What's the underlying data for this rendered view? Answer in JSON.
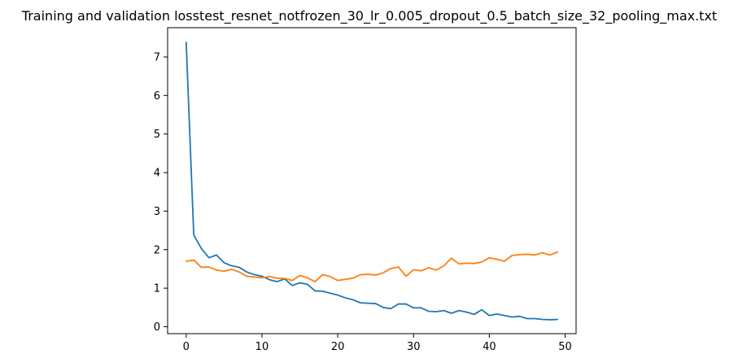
{
  "chart_data": {
    "type": "line",
    "title": "Training and validation losstest_resnet_notfrozen_30_lr_0.005_dropout_0.5_batch_size_32_pooling_max.txt",
    "xlabel": "",
    "ylabel": "",
    "xlim": [
      -2.45,
      51.45
    ],
    "ylim": [
      -0.18,
      7.76
    ],
    "x_ticks": [
      0,
      10,
      20,
      30,
      40,
      50
    ],
    "y_ticks": [
      0,
      1,
      2,
      3,
      4,
      5,
      6,
      7
    ],
    "grid": false,
    "legend": "none",
    "x": [
      0,
      1,
      2,
      3,
      4,
      5,
      6,
      7,
      8,
      9,
      10,
      11,
      12,
      13,
      14,
      15,
      16,
      17,
      18,
      19,
      20,
      21,
      22,
      23,
      24,
      25,
      26,
      27,
      28,
      29,
      30,
      31,
      32,
      33,
      34,
      35,
      36,
      37,
      38,
      39,
      40,
      41,
      42,
      43,
      44,
      45,
      46,
      47,
      48,
      49
    ],
    "series": [
      {
        "color": "#1f77b4",
        "values": [
          7.38,
          2.38,
          2.03,
          1.79,
          1.86,
          1.66,
          1.58,
          1.54,
          1.42,
          1.35,
          1.31,
          1.22,
          1.17,
          1.24,
          1.07,
          1.14,
          1.1,
          0.93,
          0.92,
          0.87,
          0.82,
          0.75,
          0.7,
          0.62,
          0.61,
          0.6,
          0.5,
          0.47,
          0.59,
          0.59,
          0.49,
          0.49,
          0.4,
          0.39,
          0.42,
          0.35,
          0.42,
          0.38,
          0.32,
          0.44,
          0.29,
          0.33,
          0.29,
          0.25,
          0.27,
          0.21,
          0.21,
          0.19,
          0.18,
          0.19
        ]
      },
      {
        "color": "#ff7f0e",
        "values": [
          1.7,
          1.73,
          1.54,
          1.55,
          1.47,
          1.44,
          1.49,
          1.42,
          1.31,
          1.29,
          1.27,
          1.3,
          1.26,
          1.25,
          1.2,
          1.33,
          1.27,
          1.17,
          1.35,
          1.3,
          1.2,
          1.23,
          1.26,
          1.35,
          1.36,
          1.34,
          1.4,
          1.51,
          1.55,
          1.31,
          1.48,
          1.45,
          1.53,
          1.47,
          1.58,
          1.78,
          1.63,
          1.65,
          1.64,
          1.68,
          1.79,
          1.75,
          1.7,
          1.85,
          1.87,
          1.88,
          1.86,
          1.92,
          1.86,
          1.94
        ]
      }
    ]
  }
}
